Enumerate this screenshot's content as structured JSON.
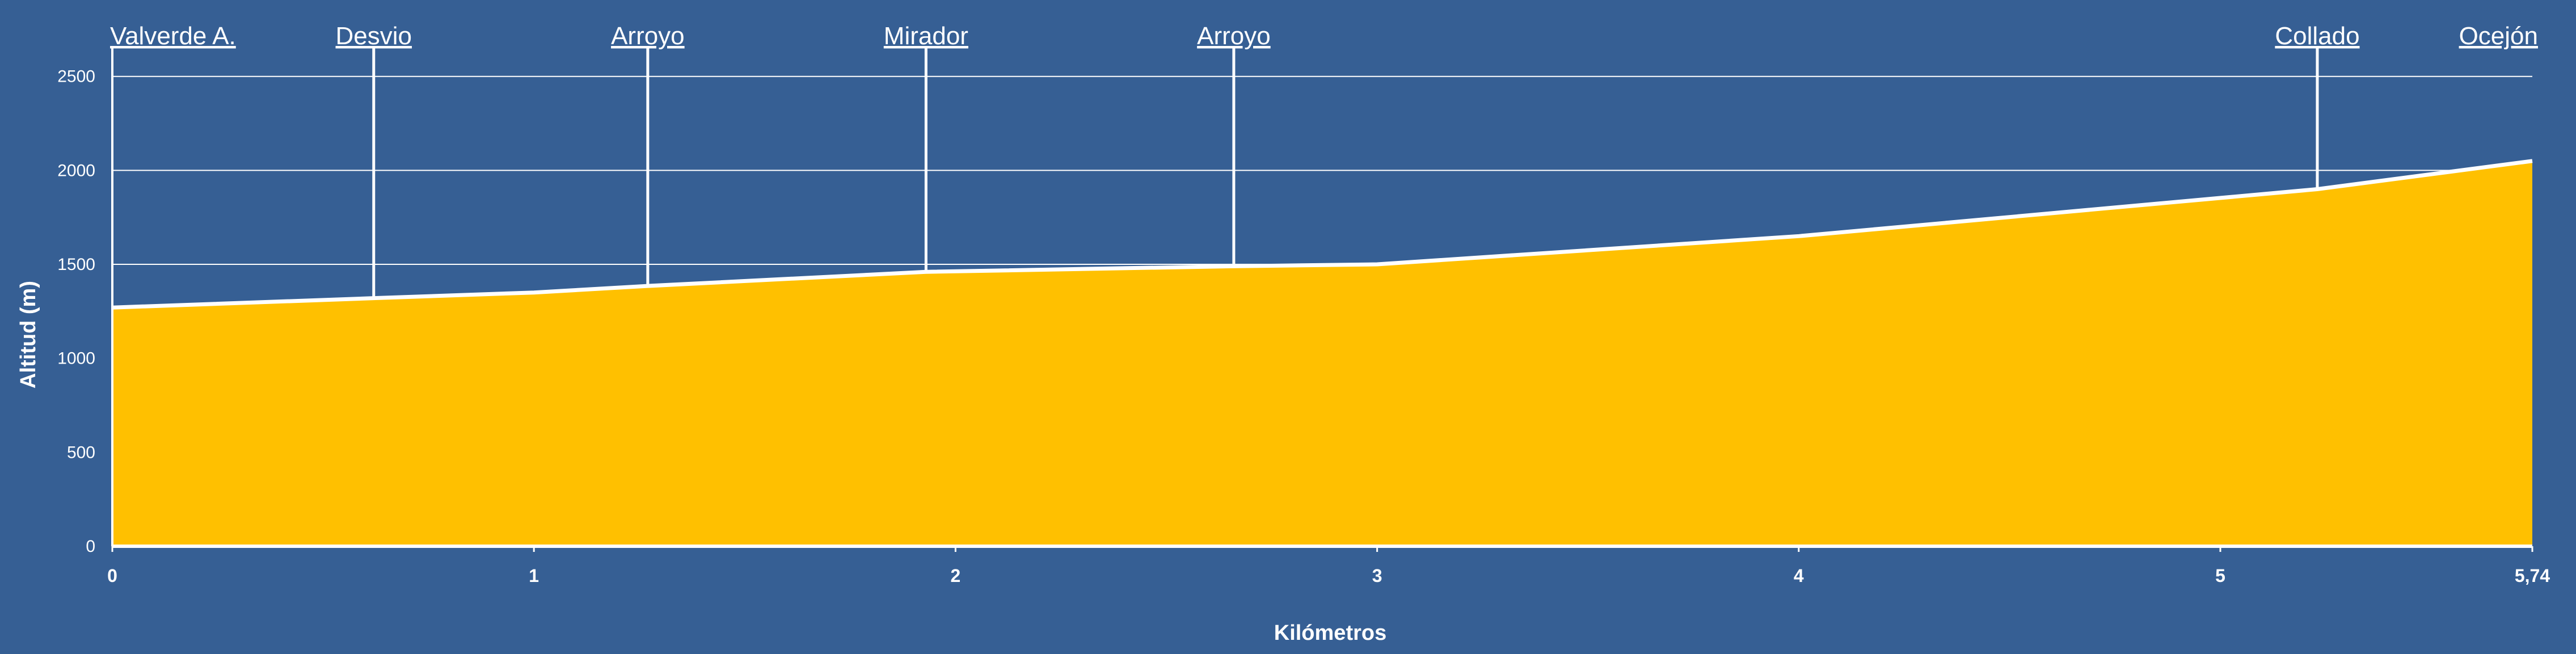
{
  "chart_data": {
    "type": "area",
    "title": "",
    "xlabel": "Kilómetros",
    "ylabel": "Altitud (m)",
    "xlim": [
      0,
      5.74
    ],
    "ylim": [
      0,
      2650
    ],
    "x_ticks": [
      0,
      1,
      2,
      3,
      4,
      5,
      5.74
    ],
    "x_tick_labels": [
      "0",
      "1",
      "2",
      "3",
      "4",
      "5",
      "5,74"
    ],
    "y_ticks": [
      0,
      500,
      1000,
      1500,
      2000,
      2500
    ],
    "y_tick_labels": [
      "0",
      "500",
      "1000",
      "1500",
      "2000",
      "2500"
    ],
    "grid": "horizontal",
    "x": [
      0,
      0.62,
      1,
      1.27,
      1.93,
      2.66,
      3,
      4,
      5.23,
      5.74
    ],
    "y": [
      1270,
      1320,
      1350,
      1385,
      1460,
      1490,
      1500,
      1650,
      1900,
      2050
    ],
    "landmarks": [
      {
        "label": "Valverde A.",
        "x": 0,
        "y": 1270
      },
      {
        "label": "Desvio",
        "x": 0.62,
        "y": 1320
      },
      {
        "label": "Arroyo",
        "x": 1.27,
        "y": 1385
      },
      {
        "label": "Mirador",
        "x": 1.93,
        "y": 1460
      },
      {
        "label": "Arroyo",
        "x": 2.66,
        "y": 1490
      },
      {
        "label": "Collado",
        "x": 5.23,
        "y": 1900
      },
      {
        "label": "Ocejón",
        "x": 5.74,
        "y": 2050
      }
    ],
    "colors": {
      "background": "#365f94",
      "fill": "#ffc000",
      "line": "#ffffff",
      "grid": "#ffffff"
    }
  }
}
